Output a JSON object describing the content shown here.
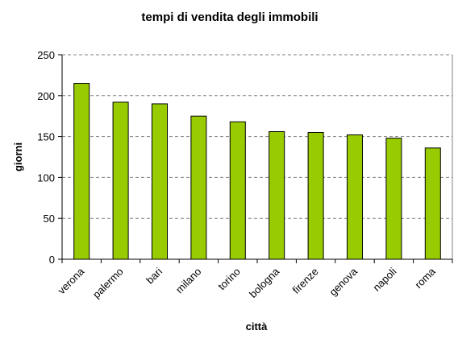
{
  "chart_data": {
    "type": "bar",
    "title": "tempi di vendita degli immobili",
    "xlabel": "città",
    "ylabel": "giorni",
    "categories": [
      "verona",
      "palermo",
      "bari",
      "milano",
      "torino",
      "bologna",
      "firenze",
      "genova",
      "napoli",
      "roma"
    ],
    "values": [
      215,
      192,
      190,
      175,
      168,
      156,
      155,
      152,
      148,
      136
    ],
    "ylim": [
      0,
      250
    ],
    "yticks": [
      0,
      50,
      100,
      150,
      200,
      250
    ],
    "grid": true,
    "legend": "none",
    "colors": {
      "bar_fill": "#99cc00",
      "bar_stroke": "#000000",
      "grid": "#808080",
      "axis": "#000000"
    }
  }
}
